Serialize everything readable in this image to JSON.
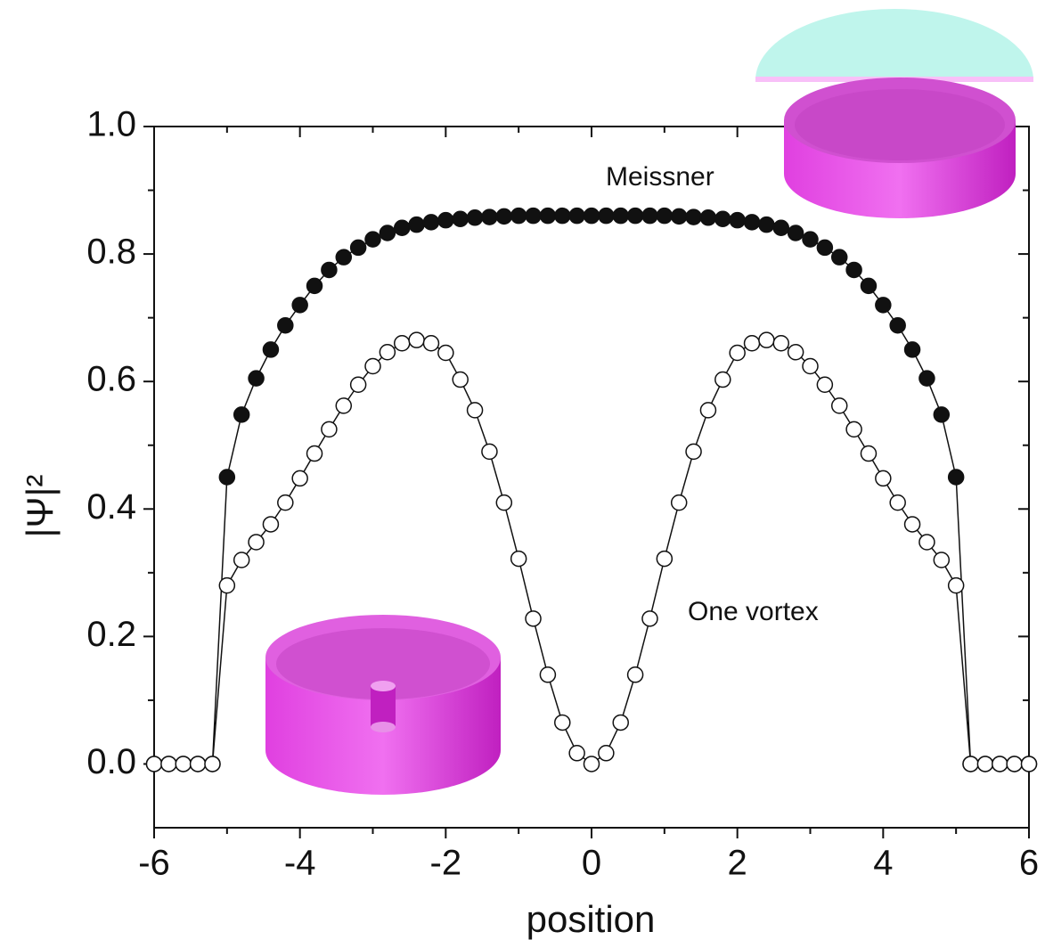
{
  "chart_data": {
    "type": "line",
    "xlabel": "position",
    "ylabel": "|Ψ|²",
    "annotations": [
      "Meissner",
      "One vortex"
    ],
    "x": [
      -6,
      -5.8,
      -5.6,
      -5.4,
      -5.2,
      -5,
      -4.8,
      -4.6,
      -4.4,
      -4.2,
      -4,
      -3.8,
      -3.6,
      -3.4,
      -3.2,
      -3,
      -2.8,
      -2.6,
      -2.4,
      -2.2,
      -2,
      -1.8,
      -1.6,
      -1.4,
      -1.2,
      -1,
      -0.8,
      -0.6,
      -0.4,
      -0.2,
      0,
      0.2,
      0.4,
      0.6,
      0.8,
      1,
      1.2,
      1.4,
      1.6,
      1.8,
      2,
      2.2,
      2.4,
      2.6,
      2.8,
      3,
      3.2,
      3.4,
      3.6,
      3.8,
      4,
      4.2,
      4.4,
      4.6,
      4.8,
      5,
      5.2,
      5.4,
      5.6,
      5.8,
      6
    ],
    "series": [
      {
        "name": "Meissner",
        "color": "#111111",
        "filled": true,
        "values": [
          0,
          0,
          0,
          0,
          0,
          0.45,
          0.548,
          0.605,
          0.65,
          0.688,
          0.72,
          0.75,
          0.775,
          0.795,
          0.81,
          0.823,
          0.833,
          0.841,
          0.846,
          0.85,
          0.853,
          0.855,
          0.857,
          0.858,
          0.859,
          0.86,
          0.86,
          0.86,
          0.86,
          0.86,
          0.86,
          0.86,
          0.86,
          0.86,
          0.86,
          0.86,
          0.859,
          0.858,
          0.857,
          0.855,
          0.853,
          0.85,
          0.846,
          0.841,
          0.833,
          0.823,
          0.81,
          0.795,
          0.775,
          0.75,
          0.72,
          0.688,
          0.65,
          0.605,
          0.548,
          0.45,
          0,
          0,
          0,
          0,
          0
        ]
      },
      {
        "name": "One vortex",
        "color": "#111111",
        "filled": false,
        "values": [
          0,
          0,
          0,
          0,
          0,
          0.28,
          0.32,
          0.348,
          0.376,
          0.41,
          0.448,
          0.487,
          0.525,
          0.562,
          0.595,
          0.624,
          0.646,
          0.66,
          0.665,
          0.66,
          0.645,
          0.603,
          0.555,
          0.49,
          0.41,
          0.322,
          0.228,
          0.14,
          0.065,
          0.017,
          0,
          0.017,
          0.065,
          0.14,
          0.228,
          0.322,
          0.41,
          0.49,
          0.555,
          0.603,
          0.645,
          0.66,
          0.665,
          0.66,
          0.646,
          0.624,
          0.595,
          0.562,
          0.525,
          0.487,
          0.448,
          0.41,
          0.376,
          0.348,
          0.32,
          0.28,
          0,
          0,
          0,
          0,
          0
        ]
      }
    ],
    "xlim": [
      -6,
      6
    ],
    "ylim": [
      -0.1,
      1.0
    ],
    "xticks": [
      -6,
      -4,
      -2,
      0,
      2,
      4,
      6
    ],
    "yticks": [
      {
        "value": 0,
        "label": "0.0"
      },
      {
        "value": 0.2,
        "label": "0.2"
      },
      {
        "value": 0.4,
        "label": "0.4"
      },
      {
        "value": 0.6,
        "label": "0.6"
      },
      {
        "value": 0.8,
        "label": "0.8"
      },
      {
        "value": 1,
        "label": "1.0"
      }
    ]
  }
}
